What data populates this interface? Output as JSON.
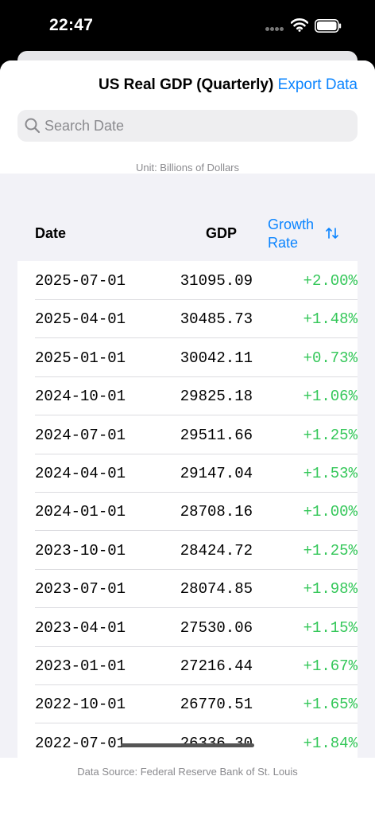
{
  "status_bar": {
    "time": "22:47"
  },
  "header": {
    "title": "US Real GDP (Quarterly)",
    "export_label": "Export Data"
  },
  "search": {
    "placeholder": "Search Date",
    "value": ""
  },
  "unit_note": "Unit: Billions of Dollars",
  "table": {
    "columns": {
      "date": "Date",
      "gdp": "GDP",
      "growth_line1": "Growth",
      "growth_line2": "Rate"
    },
    "rows": [
      {
        "date": "2025-07-01",
        "gdp": "31095.09",
        "rate": "+2.00%"
      },
      {
        "date": "2025-04-01",
        "gdp": "30485.73",
        "rate": "+1.48%"
      },
      {
        "date": "2025-01-01",
        "gdp": "30042.11",
        "rate": "+0.73%"
      },
      {
        "date": "2024-10-01",
        "gdp": "29825.18",
        "rate": "+1.06%"
      },
      {
        "date": "2024-07-01",
        "gdp": "29511.66",
        "rate": "+1.25%"
      },
      {
        "date": "2024-04-01",
        "gdp": "29147.04",
        "rate": "+1.53%"
      },
      {
        "date": "2024-01-01",
        "gdp": "28708.16",
        "rate": "+1.00%"
      },
      {
        "date": "2023-10-01",
        "gdp": "28424.72",
        "rate": "+1.25%"
      },
      {
        "date": "2023-07-01",
        "gdp": "28074.85",
        "rate": "+1.98%"
      },
      {
        "date": "2023-04-01",
        "gdp": "27530.06",
        "rate": "+1.15%"
      },
      {
        "date": "2023-01-01",
        "gdp": "27216.44",
        "rate": "+1.67%"
      },
      {
        "date": "2022-10-01",
        "gdp": "26770.51",
        "rate": "+1.65%"
      },
      {
        "date": "2022-07-01",
        "gdp": "26336.30",
        "rate": "+1.84%"
      }
    ]
  },
  "footer": {
    "source": "Data Source: Federal Reserve Bank of St. Louis"
  },
  "colors": {
    "accent": "#0a84ff",
    "positive": "#34c759"
  },
  "icons": {
    "search": "magnifying-glass-icon",
    "sort": "arrow-up-down-icon",
    "wifi": "wifi-icon",
    "battery": "battery-icon"
  }
}
